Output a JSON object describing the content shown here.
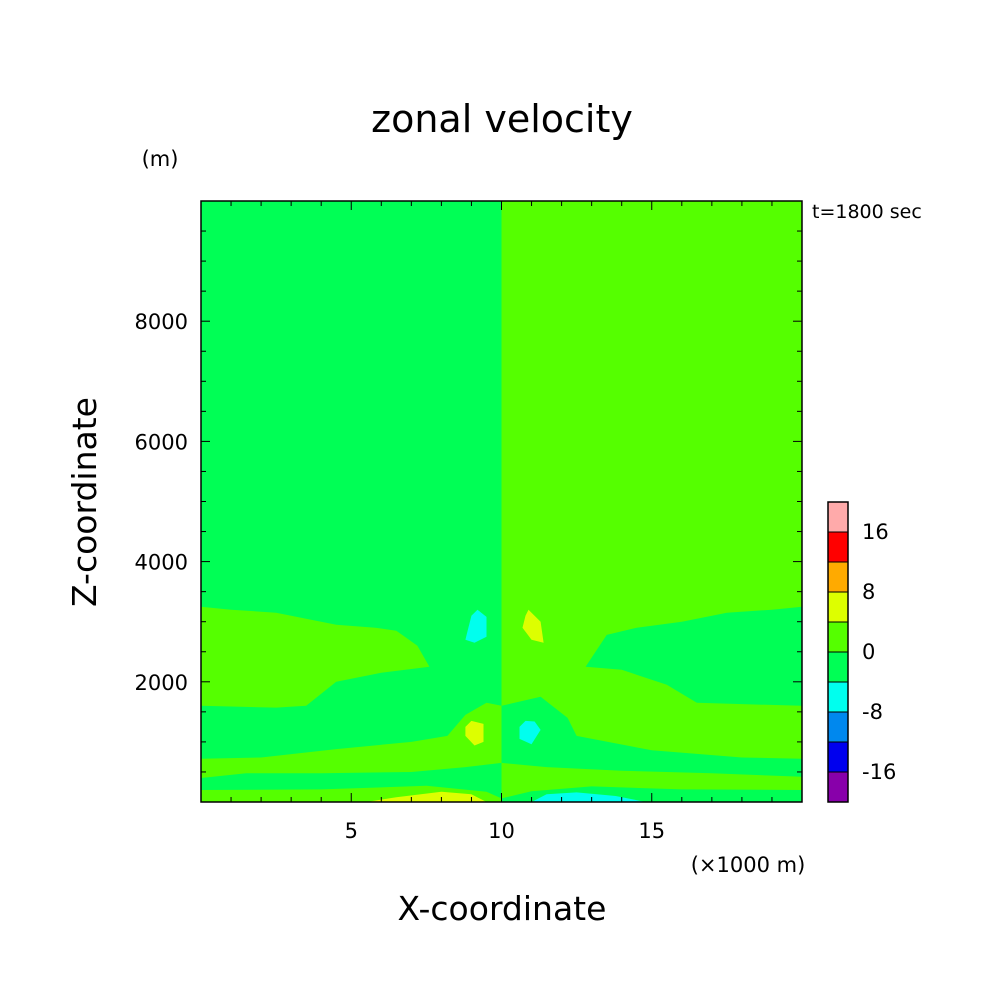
{
  "chart_data": {
    "type": "heatmap",
    "title": "zonal velocity",
    "xlabel": "X-coordinate",
    "ylabel": "Z-coordinate",
    "x_unit": "(×1000 m)",
    "y_unit": "(m)",
    "time_label": "t=1800 sec",
    "xlim": [
      0,
      20
    ],
    "ylim": [
      0,
      10000
    ],
    "x_ticks": [
      5,
      10,
      15
    ],
    "y_ticks": [
      2000,
      4000,
      6000,
      8000
    ],
    "x_tick_labels": [
      "5",
      "10",
      "15"
    ],
    "y_tick_labels": [
      "2000",
      "4000",
      "6000",
      "8000"
    ],
    "colorbar": {
      "bounds": [
        -24,
        -16,
        -12,
        -8,
        -4,
        0,
        4,
        8,
        12,
        16,
        20
      ],
      "colors": [
        "#8800aa",
        "#0000ee",
        "#0088ee",
        "#00ffee",
        "#00ff55",
        "#55ff00",
        "#ddff00",
        "#ffaa00",
        "#ff0000",
        "#ffaaaa"
      ],
      "tick_labels": [
        {
          "value": 16,
          "label": "16"
        },
        {
          "value": 8,
          "label": "8"
        },
        {
          "value": 0,
          "label": "0"
        },
        {
          "value": -8,
          "label": "-8"
        },
        {
          "value": -16,
          "label": "-16"
        }
      ]
    },
    "regions": [
      {
        "name": "left background",
        "color": "#00ff55",
        "points": [
          [
            0,
            0
          ],
          [
            10,
            0
          ],
          [
            10,
            10000
          ],
          [
            0,
            10000
          ]
        ]
      },
      {
        "name": "right background",
        "color": "#55ff00",
        "points": [
          [
            10,
            0
          ],
          [
            20,
            0
          ],
          [
            20,
            10000
          ],
          [
            10,
            10000
          ]
        ]
      },
      {
        "name": "left upper band",
        "color": "#55ff00",
        "points": [
          [
            0,
            3250
          ],
          [
            1,
            3200
          ],
          [
            2.5,
            3150
          ],
          [
            4.5,
            2950
          ],
          [
            5.8,
            2900
          ],
          [
            6.5,
            2850
          ],
          [
            7.2,
            2600
          ],
          [
            7.6,
            2250
          ],
          [
            6,
            2150
          ],
          [
            4.5,
            2000
          ],
          [
            3.5,
            1600
          ],
          [
            2.5,
            1570
          ],
          [
            0,
            1600
          ]
        ]
      },
      {
        "name": "left lower band",
        "color": "#55ff00",
        "points": [
          [
            0,
            720
          ],
          [
            2,
            740
          ],
          [
            4.5,
            880
          ],
          [
            7,
            1000
          ],
          [
            8.2,
            1100
          ],
          [
            8.8,
            1450
          ],
          [
            9.5,
            1650
          ],
          [
            10,
            1600
          ],
          [
            10,
            650
          ],
          [
            8.8,
            580
          ],
          [
            7,
            500
          ],
          [
            4,
            480
          ],
          [
            1.5,
            480
          ],
          [
            0,
            400
          ]
        ]
      },
      {
        "name": "left bottom patch",
        "color": "#55ff00",
        "points": [
          [
            0,
            200
          ],
          [
            4,
            210
          ],
          [
            7.5,
            270
          ],
          [
            9.5,
            170
          ],
          [
            10,
            60
          ],
          [
            10,
            0
          ],
          [
            0,
            0
          ]
        ]
      },
      {
        "name": "right upper band",
        "color": "#00ff55",
        "points": [
          [
            20,
            3250
          ],
          [
            19,
            3200
          ],
          [
            17.5,
            3150
          ],
          [
            16,
            3000
          ],
          [
            14.5,
            2900
          ],
          [
            13.5,
            2780
          ],
          [
            12.8,
            2250
          ],
          [
            14,
            2200
          ],
          [
            15.5,
            1950
          ],
          [
            16.5,
            1650
          ],
          [
            20,
            1600
          ]
        ]
      },
      {
        "name": "right lower band",
        "color": "#00ff55",
        "points": [
          [
            20,
            720
          ],
          [
            18,
            740
          ],
          [
            15,
            860
          ],
          [
            12.5,
            1100
          ],
          [
            12.2,
            1400
          ],
          [
            11.3,
            1750
          ],
          [
            10,
            1600
          ],
          [
            10,
            650
          ],
          [
            11.5,
            580
          ],
          [
            14,
            520
          ],
          [
            17,
            480
          ],
          [
            20,
            420
          ]
        ]
      },
      {
        "name": "right bottom patch",
        "color": "#00ff55",
        "points": [
          [
            20,
            200
          ],
          [
            16,
            210
          ],
          [
            13,
            260
          ],
          [
            11,
            180
          ],
          [
            10,
            60
          ],
          [
            10,
            0
          ],
          [
            20,
            0
          ]
        ]
      },
      {
        "name": "yellow bottom left",
        "color": "#ddff00",
        "points": [
          [
            5.5,
            0
          ],
          [
            6.5,
            80
          ],
          [
            8,
            170
          ],
          [
            9,
            130
          ],
          [
            9.5,
            0
          ]
        ]
      },
      {
        "name": "cyan bottom right",
        "color": "#00ffee",
        "points": [
          [
            11,
            0
          ],
          [
            11.5,
            130
          ],
          [
            12.5,
            160
          ],
          [
            13.8,
            100
          ],
          [
            14.8,
            0
          ]
        ]
      },
      {
        "name": "cyan upper blob",
        "color": "#00ffee",
        "points": [
          [
            9.2,
            3200
          ],
          [
            9.5,
            3080
          ],
          [
            9.5,
            2750
          ],
          [
            9.1,
            2650
          ],
          [
            8.8,
            2700
          ],
          [
            9,
            3100
          ]
        ]
      },
      {
        "name": "yellow upper blob",
        "color": "#ddff00",
        "points": [
          [
            10.9,
            3200
          ],
          [
            11.3,
            3000
          ],
          [
            11.4,
            2650
          ],
          [
            11,
            2700
          ],
          [
            10.7,
            2900
          ],
          [
            10.8,
            3100
          ]
        ]
      },
      {
        "name": "yellow lower blob",
        "color": "#ddff00",
        "points": [
          [
            9,
            1350
          ],
          [
            9.4,
            1300
          ],
          [
            9.4,
            1000
          ],
          [
            9.1,
            940
          ],
          [
            8.8,
            1100
          ],
          [
            8.8,
            1250
          ]
        ]
      },
      {
        "name": "cyan lower blob",
        "color": "#00ffee",
        "points": [
          [
            10.8,
            1350
          ],
          [
            11.1,
            1340
          ],
          [
            11.3,
            1200
          ],
          [
            11,
            960
          ],
          [
            10.6,
            1050
          ],
          [
            10.6,
            1250
          ]
        ]
      }
    ]
  }
}
